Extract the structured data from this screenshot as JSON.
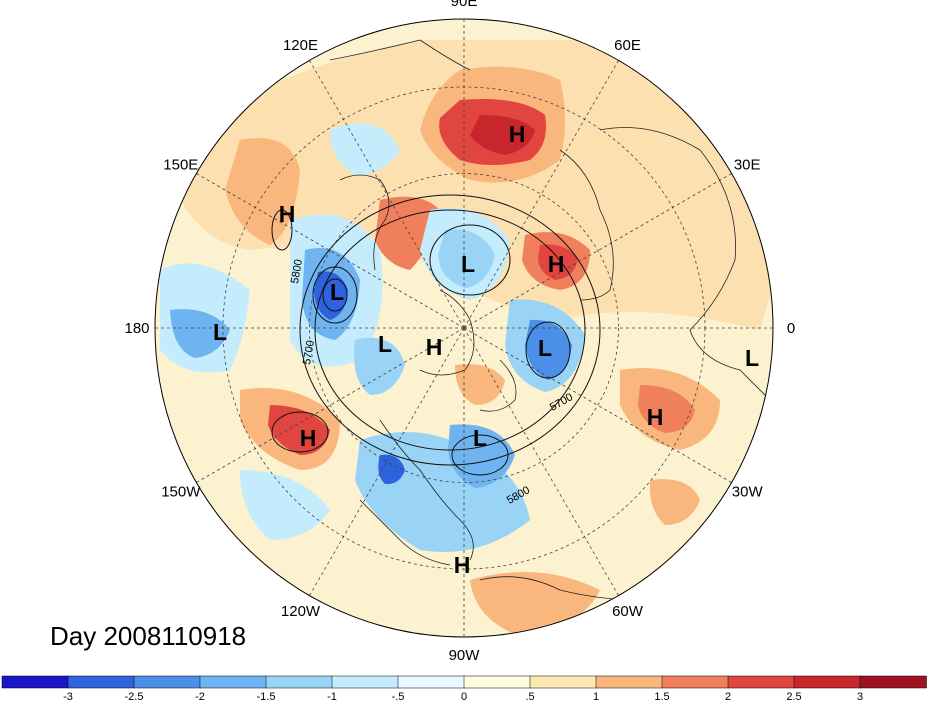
{
  "map": {
    "projection": "north-polar-stereographic",
    "lon_labels": [
      {
        "text": "90E",
        "lon": 90
      },
      {
        "text": "60E",
        "lon": 60
      },
      {
        "text": "30E",
        "lon": 30
      },
      {
        "text": "0",
        "lon": 0
      },
      {
        "text": "30W",
        "lon": -30
      },
      {
        "text": "60W",
        "lon": -60
      },
      {
        "text": "90W",
        "lon": -90
      },
      {
        "text": "120W",
        "lon": -120
      },
      {
        "text": "150W",
        "lon": -150
      },
      {
        "text": "180",
        "lon": 180
      },
      {
        "text": "150E",
        "lon": 150
      },
      {
        "text": "120E",
        "lon": 120
      }
    ],
    "pressure_centers": [
      {
        "label": "H",
        "place": "west-siberia"
      },
      {
        "label": "H",
        "place": "north-pacific"
      },
      {
        "label": "L",
        "place": "arctic-siberia"
      },
      {
        "label": "H",
        "place": "barents-sea"
      },
      {
        "label": "L",
        "place": "bering-sea"
      },
      {
        "label": "L",
        "place": "central-pacific"
      },
      {
        "label": "L",
        "place": "beaufort-sea"
      },
      {
        "label": "H",
        "place": "canadian-arctic"
      },
      {
        "label": "L",
        "place": "greenland-sea"
      },
      {
        "label": "L",
        "place": "west-africa"
      },
      {
        "label": "H",
        "place": "north-atlantic"
      },
      {
        "label": "H",
        "place": "northeast-pacific"
      },
      {
        "label": "L",
        "place": "hudson-bay"
      },
      {
        "label": "H",
        "place": "central-america"
      }
    ],
    "contour_labels": [
      "5800",
      "5700",
      "5700",
      "5800"
    ]
  },
  "colorbar": {
    "ticks": [
      "-3",
      "-2.5",
      "-2",
      "-1.5",
      "-1",
      "-.5",
      "0",
      ".5",
      "1",
      "1.5",
      "2",
      "2.5",
      "3"
    ],
    "colors": [
      "#1b14c9",
      "#2d63dc",
      "#4b8fe8",
      "#6fb3f0",
      "#99d4f7",
      "#c4ecfc",
      "#e8f8ff",
      "#fffbdf",
      "#fce8b3",
      "#f9b77d",
      "#f07f5c",
      "#e0453f",
      "#c7262d",
      "#9e1324"
    ]
  },
  "day_label": "Day 2008110918"
}
